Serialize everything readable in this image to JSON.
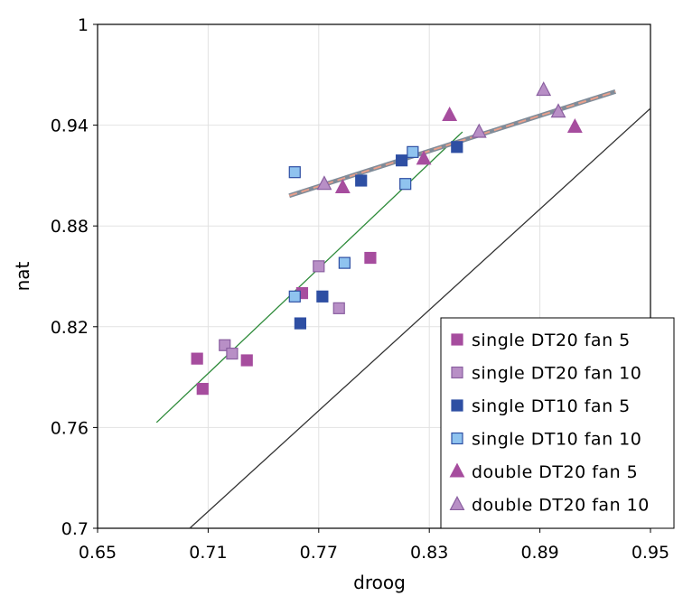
{
  "chart_data": {
    "type": "scatter",
    "title": "",
    "xlabel": "droog",
    "ylabel": "nat",
    "xlim": [
      0.65,
      0.95
    ],
    "ylim": [
      0.7,
      1.0
    ],
    "xticks": [
      0.65,
      0.71,
      0.77,
      0.83,
      0.89,
      0.95
    ],
    "yticks": [
      0.7,
      0.76,
      0.82,
      0.88,
      0.94,
      1.0
    ],
    "xtick_labels": [
      "0.65",
      "0.71",
      "0.77",
      "0.83",
      "0.89",
      "0.95"
    ],
    "ytick_labels": [
      "0.7",
      "0.76",
      "0.82",
      "0.88",
      "0.94",
      "1"
    ],
    "grid": true,
    "legend_position": "bottom-right",
    "series": [
      {
        "name": "single DT20 fan 5",
        "marker": "square",
        "color": "#a64d9e",
        "stroke": "#a64d9e",
        "x": [
          0.704,
          0.707,
          0.731,
          0.761,
          0.798
        ],
        "y": [
          0.801,
          0.783,
          0.8,
          0.84,
          0.861
        ]
      },
      {
        "name": "single DT20 fan 10",
        "marker": "square",
        "color": "#b88fc6",
        "stroke": "#8a5fa0",
        "x": [
          0.719,
          0.723,
          0.77,
          0.781
        ],
        "y": [
          0.809,
          0.804,
          0.856,
          0.831
        ]
      },
      {
        "name": "single DT10 fan 5",
        "marker": "square",
        "color": "#2e4fa3",
        "stroke": "#2e4fa3",
        "x": [
          0.76,
          0.772,
          0.793,
          0.815,
          0.845
        ],
        "y": [
          0.822,
          0.838,
          0.907,
          0.919,
          0.927
        ]
      },
      {
        "name": "single DT10 fan 10",
        "marker": "square",
        "color": "#8fc3ef",
        "stroke": "#2e4fa3",
        "x": [
          0.757,
          0.757,
          0.784,
          0.817,
          0.821
        ],
        "y": [
          0.912,
          0.838,
          0.858,
          0.905,
          0.924
        ]
      },
      {
        "name": "double DT20 fan 5",
        "marker": "triangle",
        "color": "#a64d9e",
        "stroke": "#a64d9e",
        "x": [
          0.783,
          0.827,
          0.841,
          0.909
        ],
        "y": [
          0.903,
          0.92,
          0.946,
          0.939
        ]
      },
      {
        "name": "double DT20 fan 10",
        "marker": "triangle",
        "color": "#b88fc6",
        "stroke": "#8a5fa0",
        "x": [
          0.773,
          0.857,
          0.892,
          0.9
        ],
        "y": [
          0.905,
          0.936,
          0.961,
          0.948
        ]
      }
    ],
    "lines": [
      {
        "name": "",
        "color": "#2e8b3a",
        "style": "solid",
        "width": 1.3,
        "x": [
          0.682,
          0.848
        ],
        "y": [
          0.763,
          0.936
        ]
      },
      {
        "name": "",
        "color": "#808c99",
        "style": "solid",
        "width": 5,
        "x": [
          0.754,
          0.931
        ],
        "y": [
          0.898,
          0.96
        ]
      },
      {
        "name": "",
        "color": "#e8a08c",
        "style": "dashed",
        "width": 2,
        "x": [
          0.754,
          0.931
        ],
        "y": [
          0.898,
          0.96
        ]
      },
      {
        "name": "",
        "color": "#333333",
        "style": "solid",
        "width": 1.3,
        "x": [
          0.7,
          0.95
        ],
        "y": [
          0.7,
          0.95
        ]
      }
    ]
  }
}
